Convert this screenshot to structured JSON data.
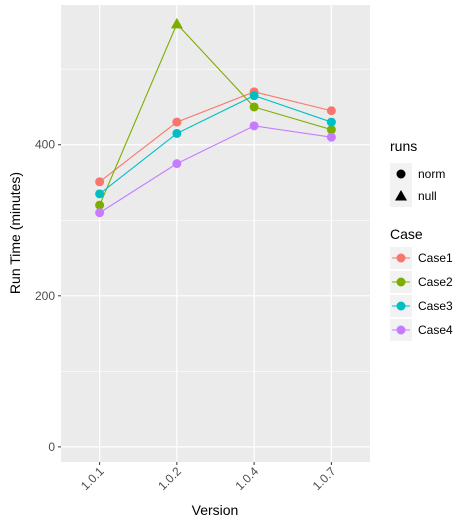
{
  "chart_data": {
    "type": "line",
    "xlabel": "Version",
    "ylabel": "Run Time (minutes)",
    "categories": [
      "1.0.1",
      "1.0.2",
      "1.0.4",
      "1.0.7"
    ],
    "ylim": [
      -20,
      585
    ],
    "y_ticks": [
      0,
      200,
      400
    ],
    "y_tick_labels": [
      "0",
      "200",
      "400"
    ],
    "grid": true,
    "panel_background": "#ebebeb",
    "grid_color": "#ffffff",
    "x_tick_label_rotation": "45",
    "series": [
      {
        "name": "Case1",
        "color": "#f8766d",
        "values": [
          351,
          430,
          470,
          445
        ],
        "runs": [
          "norm",
          "norm",
          "norm",
          "norm"
        ]
      },
      {
        "name": "Case2",
        "color": "#7cae00",
        "values": [
          320,
          560,
          450,
          420
        ],
        "runs": [
          "norm",
          "null",
          "norm",
          "norm"
        ]
      },
      {
        "name": "Case3",
        "color": "#00bfc4",
        "values": [
          335,
          415,
          465,
          430
        ],
        "runs": [
          "norm",
          "norm",
          "norm",
          "norm"
        ]
      },
      {
        "name": "Case4",
        "color": "#c77cff",
        "values": [
          310,
          375,
          425,
          410
        ],
        "runs": [
          "norm",
          "norm",
          "norm",
          "norm"
        ]
      }
    ],
    "legends": [
      {
        "title": "runs",
        "entries": [
          {
            "label": "norm",
            "shape": "circle"
          },
          {
            "label": "null",
            "shape": "triangle"
          }
        ]
      },
      {
        "title": "Case",
        "entries": [
          {
            "label": "Case1",
            "color": "#f8766d"
          },
          {
            "label": "Case2",
            "color": "#7cae00"
          },
          {
            "label": "Case3",
            "color": "#00bfc4"
          },
          {
            "label": "Case4",
            "color": "#c77cff"
          }
        ]
      }
    ],
    "legend_placement": "right"
  }
}
